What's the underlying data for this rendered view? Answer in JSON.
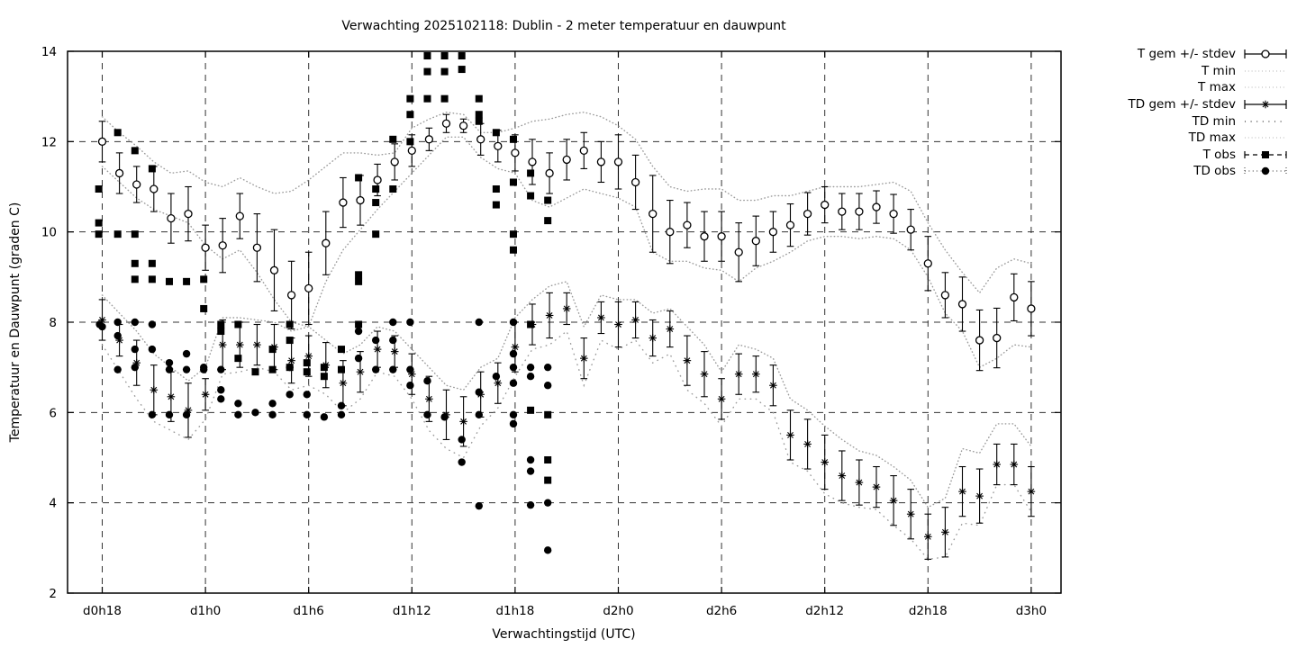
{
  "title": "Verwachting 2025102118: Dublin - 2 meter temperatuur en dauwpunt",
  "axes": {
    "xlabel": "Verwachtingstijd (UTC)",
    "ylabel": "Temperatuur en Dauwpunt (graden C)"
  },
  "colors": {
    "foreground": "#000000",
    "grid": "#333333",
    "envelope_dotted": "#9b9b9b",
    "background": "#ffffff"
  },
  "legend": {
    "items": [
      {
        "label": "T gem +/- stdev",
        "style": "errorbar",
        "marker": "circle-open"
      },
      {
        "label": "T min",
        "style": "dotted-fine",
        "marker": "none"
      },
      {
        "label": "T max",
        "style": "dotted-fine",
        "marker": "none"
      },
      {
        "label": "TD gem +/- stdev",
        "style": "errorbar",
        "marker": "asterisk"
      },
      {
        "label": "TD min",
        "style": "dotted-sparse",
        "marker": "none"
      },
      {
        "label": "TD max",
        "style": "dotted-fine",
        "marker": "none"
      },
      {
        "label": "T obs",
        "style": "dashed-caps",
        "marker": "square-filled"
      },
      {
        "label": "TD obs",
        "style": "dotted-caps",
        "marker": "circle-filled"
      }
    ]
  },
  "chart_data": {
    "type": "line",
    "title": "Verwachting 2025102118: Dublin - 2 meter temperatuur en dauwpunt",
    "xlabel": "Verwachtingstijd (UTC)",
    "ylabel": "Temperatuur en Dauwpunt (graden C)",
    "x_unit": "hours after d0h18, hourly step",
    "x_range": [
      -2,
      55.7
    ],
    "ylim": [
      2,
      14
    ],
    "y_ticks": [
      2,
      4,
      6,
      8,
      10,
      12,
      14
    ],
    "x_tick_positions": [
      0,
      6,
      12,
      18,
      24,
      30,
      36,
      42,
      48,
      54
    ],
    "x_tick_labels": [
      "d0h18",
      "d1h0",
      "d1h6",
      "d1h12",
      "d1h18",
      "d2h0",
      "d2h6",
      "d2h12",
      "d2h18",
      "d3h0"
    ],
    "grid": true,
    "legend_position": "outside-right-top",
    "series": {
      "T_gem": {
        "mean": [
          12.0,
          11.3,
          11.05,
          10.95,
          10.3,
          10.4,
          9.65,
          9.7,
          10.35,
          9.65,
          9.15,
          8.6,
          8.75,
          9.75,
          10.65,
          10.7,
          11.15,
          11.55,
          11.8,
          12.05,
          12.4,
          12.35,
          12.05,
          11.9,
          11.75,
          11.55,
          11.3,
          11.6,
          11.8,
          11.55,
          11.55,
          11.1,
          10.4,
          10.0,
          10.15,
          9.9,
          9.9,
          9.55,
          9.8,
          10.0,
          10.15,
          10.4,
          10.6,
          10.45,
          10.45,
          10.55,
          10.4,
          10.05,
          9.3,
          8.6,
          8.4,
          7.6,
          7.65,
          8.55,
          8.3
        ],
        "stdev": [
          0.45,
          0.45,
          0.4,
          0.5,
          0.55,
          0.6,
          0.5,
          0.6,
          0.5,
          0.75,
          0.9,
          0.75,
          0.8,
          0.7,
          0.55,
          0.55,
          0.35,
          0.4,
          0.35,
          0.25,
          0.2,
          0.15,
          0.35,
          0.35,
          0.4,
          0.5,
          0.45,
          0.45,
          0.4,
          0.45,
          0.6,
          0.6,
          0.85,
          0.7,
          0.5,
          0.55,
          0.55,
          0.65,
          0.55,
          0.45,
          0.47,
          0.47,
          0.4,
          0.4,
          0.4,
          0.36,
          0.43,
          0.45,
          0.6,
          0.5,
          0.6,
          0.67,
          0.66,
          0.52,
          0.6
        ]
      },
      "T_min": [
        11.45,
        11.1,
        10.75,
        10.5,
        10.35,
        10.2,
        9.7,
        9.4,
        9.6,
        9.1,
        8.5,
        8.0,
        7.9,
        8.9,
        9.6,
        10.05,
        10.5,
        10.9,
        11.3,
        11.7,
        12.1,
        12.1,
        11.65,
        11.4,
        11.3,
        10.7,
        10.55,
        10.75,
        10.95,
        10.85,
        10.75,
        10.55,
        9.55,
        9.35,
        9.35,
        9.2,
        9.15,
        8.9,
        9.2,
        9.35,
        9.55,
        9.8,
        9.9,
        9.9,
        9.85,
        9.9,
        9.85,
        9.6,
        9.0,
        8.2,
        7.8,
        7.0,
        7.2,
        7.5,
        7.45
      ],
      "T_max": [
        12.55,
        12.2,
        11.9,
        11.55,
        11.3,
        11.35,
        11.1,
        11.0,
        11.2,
        11.0,
        10.85,
        10.9,
        11.15,
        11.45,
        11.75,
        11.75,
        11.7,
        11.75,
        12.3,
        12.5,
        12.65,
        12.6,
        12.2,
        12.2,
        12.3,
        12.45,
        12.5,
        12.6,
        12.65,
        12.55,
        12.35,
        12.05,
        11.45,
        11.0,
        10.9,
        10.95,
        10.95,
        10.7,
        10.7,
        10.8,
        10.8,
        10.9,
        11.0,
        11.0,
        11.0,
        11.05,
        11.1,
        10.9,
        10.2,
        9.6,
        9.1,
        8.65,
        9.2,
        9.4,
        9.3
      ],
      "TD_gem": {
        "mean": [
          8.05,
          7.6,
          7.1,
          6.5,
          6.35,
          6.05,
          6.4,
          7.5,
          7.5,
          7.5,
          7.45,
          7.15,
          7.25,
          7.05,
          6.65,
          6.9,
          7.4,
          7.35,
          6.85,
          6.3,
          5.95,
          5.8,
          6.4,
          6.65,
          7.45,
          7.95,
          8.15,
          8.3,
          7.2,
          8.1,
          7.95,
          8.05,
          7.65,
          7.85,
          7.15,
          6.85,
          6.3,
          6.85,
          6.85,
          6.6,
          5.5,
          5.3,
          4.9,
          4.6,
          4.45,
          4.35,
          4.05,
          3.75,
          3.25,
          3.35,
          4.25,
          4.15,
          4.85,
          4.85,
          4.25
        ],
        "stdev": [
          0.45,
          0.35,
          0.5,
          0.55,
          0.55,
          0.6,
          0.35,
          0.55,
          0.5,
          0.45,
          0.5,
          0.5,
          0.45,
          0.5,
          0.5,
          0.45,
          0.4,
          0.35,
          0.45,
          0.5,
          0.55,
          0.55,
          0.5,
          0.45,
          0.55,
          0.45,
          0.5,
          0.35,
          0.45,
          0.35,
          0.5,
          0.4,
          0.4,
          0.4,
          0.55,
          0.5,
          0.45,
          0.45,
          0.4,
          0.45,
          0.55,
          0.55,
          0.6,
          0.55,
          0.5,
          0.45,
          0.55,
          0.55,
          0.5,
          0.55,
          0.55,
          0.6,
          0.45,
          0.45,
          0.55
        ]
      },
      "TD_min": [
        7.5,
        6.9,
        6.3,
        5.8,
        5.6,
        5.4,
        5.85,
        6.85,
        6.9,
        7.0,
        6.9,
        6.5,
        6.6,
        6.4,
        6.0,
        6.3,
        6.9,
        6.8,
        6.3,
        5.6,
        5.2,
        5.0,
        5.7,
        6.1,
        6.8,
        7.4,
        7.5,
        7.8,
        6.6,
        7.6,
        7.4,
        7.6,
        7.1,
        7.3,
        6.5,
        6.2,
        5.7,
        6.3,
        6.3,
        6.0,
        4.9,
        4.7,
        4.2,
        4.0,
        3.9,
        3.85,
        3.5,
        3.2,
        2.75,
        2.8,
        3.55,
        3.5,
        4.4,
        4.4,
        3.8
      ],
      "TD_max": [
        8.6,
        8.2,
        7.8,
        7.3,
        7.0,
        6.7,
        7.0,
        8.1,
        8.1,
        8.05,
        8.0,
        7.8,
        7.9,
        7.6,
        7.3,
        7.5,
        7.9,
        7.8,
        7.4,
        7.0,
        6.6,
        6.5,
        7.0,
        7.2,
        8.1,
        8.5,
        8.8,
        8.9,
        7.9,
        8.6,
        8.5,
        8.5,
        8.2,
        8.3,
        7.9,
        7.5,
        6.9,
        7.5,
        7.4,
        7.2,
        6.3,
        6.05,
        5.7,
        5.4,
        5.15,
        5.05,
        4.8,
        4.5,
        3.9,
        4.1,
        5.2,
        5.1,
        5.75,
        5.75,
        5.25
      ],
      "T_obs": [
        [
          -0.2,
          10.95
        ],
        [
          -0.2,
          10.2
        ],
        [
          -0.2,
          9.95
        ],
        [
          0.9,
          12.2
        ],
        [
          0.9,
          9.95
        ],
        [
          1.9,
          11.8
        ],
        [
          1.9,
          9.95
        ],
        [
          1.9,
          9.3
        ],
        [
          1.9,
          8.95
        ],
        [
          2.9,
          11.4
        ],
        [
          2.9,
          9.3
        ],
        [
          2.9,
          8.95
        ],
        [
          3.9,
          8.9
        ],
        [
          4.9,
          8.9
        ],
        [
          5.9,
          8.95
        ],
        [
          5.9,
          8.3
        ],
        [
          6.9,
          7.95
        ],
        [
          6.9,
          7.8
        ],
        [
          7.9,
          7.95
        ],
        [
          7.9,
          7.2
        ],
        [
          8.9,
          6.9
        ],
        [
          9.9,
          7.4
        ],
        [
          9.9,
          6.95
        ],
        [
          10.9,
          7.95
        ],
        [
          10.9,
          7.6
        ],
        [
          10.9,
          7.0
        ],
        [
          11.9,
          7.1
        ],
        [
          11.9,
          6.9
        ],
        [
          12.9,
          7.0
        ],
        [
          12.9,
          6.8
        ],
        [
          13.9,
          7.4
        ],
        [
          13.9,
          6.95
        ],
        [
          14.9,
          11.2
        ],
        [
          14.9,
          9.05
        ],
        [
          14.9,
          8.9
        ],
        [
          14.9,
          7.95
        ],
        [
          15.9,
          10.95
        ],
        [
          15.9,
          10.65
        ],
        [
          15.9,
          9.95
        ],
        [
          16.9,
          12.05
        ],
        [
          16.9,
          10.95
        ],
        [
          17.9,
          12.95
        ],
        [
          17.9,
          12.6
        ],
        [
          17.9,
          12.0
        ],
        [
          18.9,
          13.9
        ],
        [
          18.9,
          13.55
        ],
        [
          18.9,
          12.95
        ],
        [
          19.9,
          13.9
        ],
        [
          19.9,
          13.55
        ],
        [
          19.9,
          12.95
        ],
        [
          20.9,
          13.9
        ],
        [
          20.9,
          13.6
        ],
        [
          21.9,
          12.95
        ],
        [
          21.9,
          12.6
        ],
        [
          21.9,
          12.45
        ],
        [
          22.9,
          12.2
        ],
        [
          22.9,
          10.95
        ],
        [
          22.9,
          10.6
        ],
        [
          23.9,
          12.05
        ],
        [
          23.9,
          11.1
        ],
        [
          23.9,
          9.95
        ],
        [
          23.9,
          9.6
        ],
        [
          24.9,
          11.3
        ],
        [
          24.9,
          10.8
        ],
        [
          24.9,
          7.95
        ],
        [
          24.9,
          6.05
        ],
        [
          25.9,
          10.7
        ],
        [
          25.9,
          10.25
        ],
        [
          25.9,
          5.95
        ],
        [
          25.9,
          4.95
        ],
        [
          25.9,
          4.5
        ]
      ],
      "TD_obs": [
        [
          -0.15,
          7.95
        ],
        [
          0.0,
          7.9
        ],
        [
          0.9,
          8.0
        ],
        [
          0.9,
          7.7
        ],
        [
          0.9,
          6.95
        ],
        [
          1.9,
          8.0
        ],
        [
          1.9,
          7.4
        ],
        [
          1.9,
          7.0
        ],
        [
          2.9,
          7.95
        ],
        [
          2.9,
          7.4
        ],
        [
          2.9,
          5.95
        ],
        [
          3.9,
          7.1
        ],
        [
          3.9,
          6.95
        ],
        [
          3.9,
          5.95
        ],
        [
          4.9,
          7.3
        ],
        [
          4.9,
          6.95
        ],
        [
          4.9,
          5.95
        ],
        [
          5.9,
          7.0
        ],
        [
          5.9,
          6.95
        ],
        [
          6.9,
          6.95
        ],
        [
          6.9,
          6.5
        ],
        [
          6.9,
          6.3
        ],
        [
          7.9,
          6.2
        ],
        [
          7.9,
          5.95
        ],
        [
          8.9,
          6.0
        ],
        [
          9.9,
          6.2
        ],
        [
          9.9,
          5.95
        ],
        [
          10.9,
          7.0
        ],
        [
          10.9,
          6.4
        ],
        [
          11.9,
          6.4
        ],
        [
          11.9,
          5.95
        ],
        [
          12.9,
          5.9
        ],
        [
          13.9,
          6.15
        ],
        [
          13.9,
          5.95
        ],
        [
          14.9,
          7.8
        ],
        [
          14.9,
          7.2
        ],
        [
          15.9,
          7.6
        ],
        [
          15.9,
          6.95
        ],
        [
          16.9,
          8.0
        ],
        [
          16.9,
          7.6
        ],
        [
          16.9,
          6.95
        ],
        [
          17.9,
          8.0
        ],
        [
          17.9,
          6.95
        ],
        [
          17.9,
          6.6
        ],
        [
          18.9,
          6.7
        ],
        [
          18.9,
          5.95
        ],
        [
          19.9,
          5.9
        ],
        [
          20.9,
          5.4
        ],
        [
          20.9,
          4.9
        ],
        [
          21.9,
          8.0
        ],
        [
          21.9,
          6.45
        ],
        [
          21.9,
          5.95
        ],
        [
          21.9,
          3.93
        ],
        [
          22.9,
          6.8
        ],
        [
          23.9,
          8.0
        ],
        [
          23.9,
          7.3
        ],
        [
          23.9,
          7.0
        ],
        [
          23.9,
          6.65
        ],
        [
          23.9,
          5.95
        ],
        [
          23.9,
          5.75
        ],
        [
          24.9,
          7.0
        ],
        [
          24.9,
          6.8
        ],
        [
          24.9,
          4.95
        ],
        [
          24.9,
          4.7
        ],
        [
          24.9,
          3.95
        ],
        [
          25.9,
          7.0
        ],
        [
          25.9,
          6.6
        ],
        [
          25.9,
          4.0
        ],
        [
          25.9,
          2.95
        ]
      ]
    }
  }
}
